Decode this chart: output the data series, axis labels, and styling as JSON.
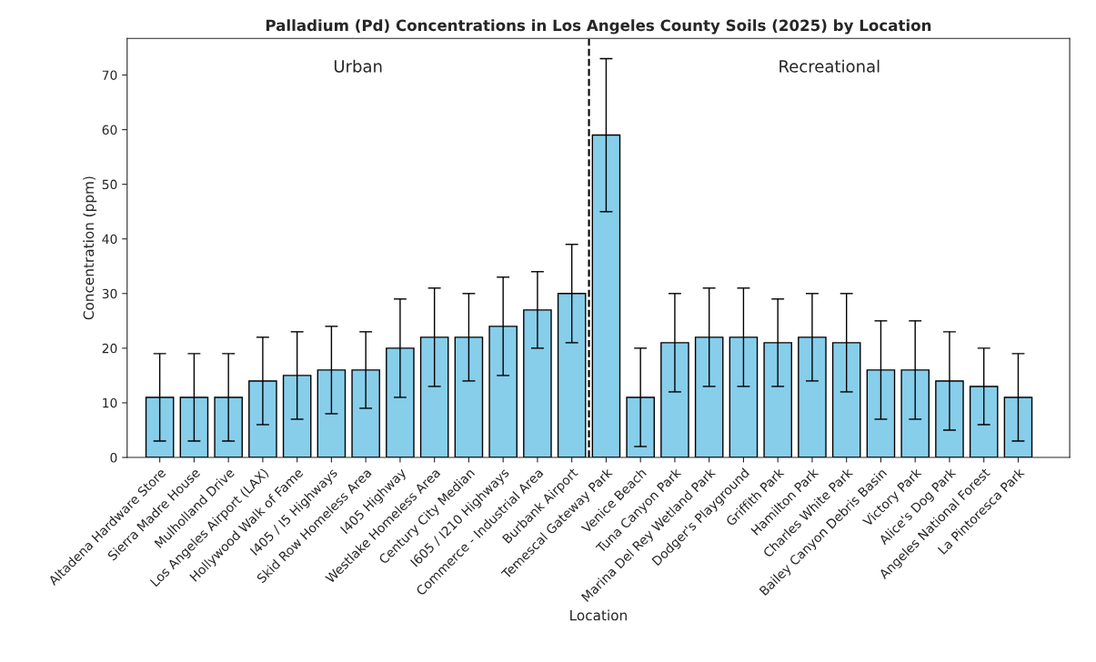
{
  "chart_data": {
    "type": "bar",
    "title": "Palladium (Pd) Concentrations in Los Angeles County Soils (2025) by Location",
    "xlabel": "Location",
    "ylabel": "Concentration (ppm)",
    "categories": [
      "Altadena Hardware Store",
      "Sierra Madre House",
      "Mulholland Drive",
      "Los Angeles Airport (LAX)",
      "Hollywood Walk of Fame",
      "I405 / I5 Highways",
      "Skid Row Homeless Area",
      "I405 Highway",
      "Westlake Homeless Area",
      "Century City Median",
      "I605 / I210 Highways",
      "Commerce - Industrial Area",
      "Burbank Airport",
      "Temescal Gateway Park",
      "Venice Beach",
      "Tuna Canyon Park",
      "Marina Del Rey Wetland Park",
      "Dodger's Playground",
      "Griffith Park",
      "Hamilton Park",
      "Charles White Park",
      "Bailey Canyon Debris Basin",
      "Victory Park",
      "Alice's Dog Park",
      "Angeles National Forest",
      "La Pintoresca Park"
    ],
    "series": [
      {
        "color": "#87ceeb",
        "values": [
          11,
          11,
          11,
          14,
          15,
          16,
          16,
          20,
          22,
          22,
          24,
          27,
          30,
          59,
          11,
          21,
          22,
          22,
          21,
          22,
          21,
          16,
          16,
          14,
          13,
          11
        ],
        "errors": [
          8,
          8,
          8,
          8,
          8,
          8,
          7,
          9,
          9,
          8,
          9,
          7,
          9,
          14,
          9,
          9,
          9,
          9,
          8,
          8,
          9,
          9,
          9,
          9,
          7,
          8
        ]
      }
    ],
    "ylim": [
      0,
      76.7
    ],
    "yticks": [
      0,
      10,
      20,
      30,
      40,
      50,
      60,
      70
    ],
    "annotations": [
      "Urban",
      "Recreational"
    ],
    "grid": false,
    "legend": false
  }
}
